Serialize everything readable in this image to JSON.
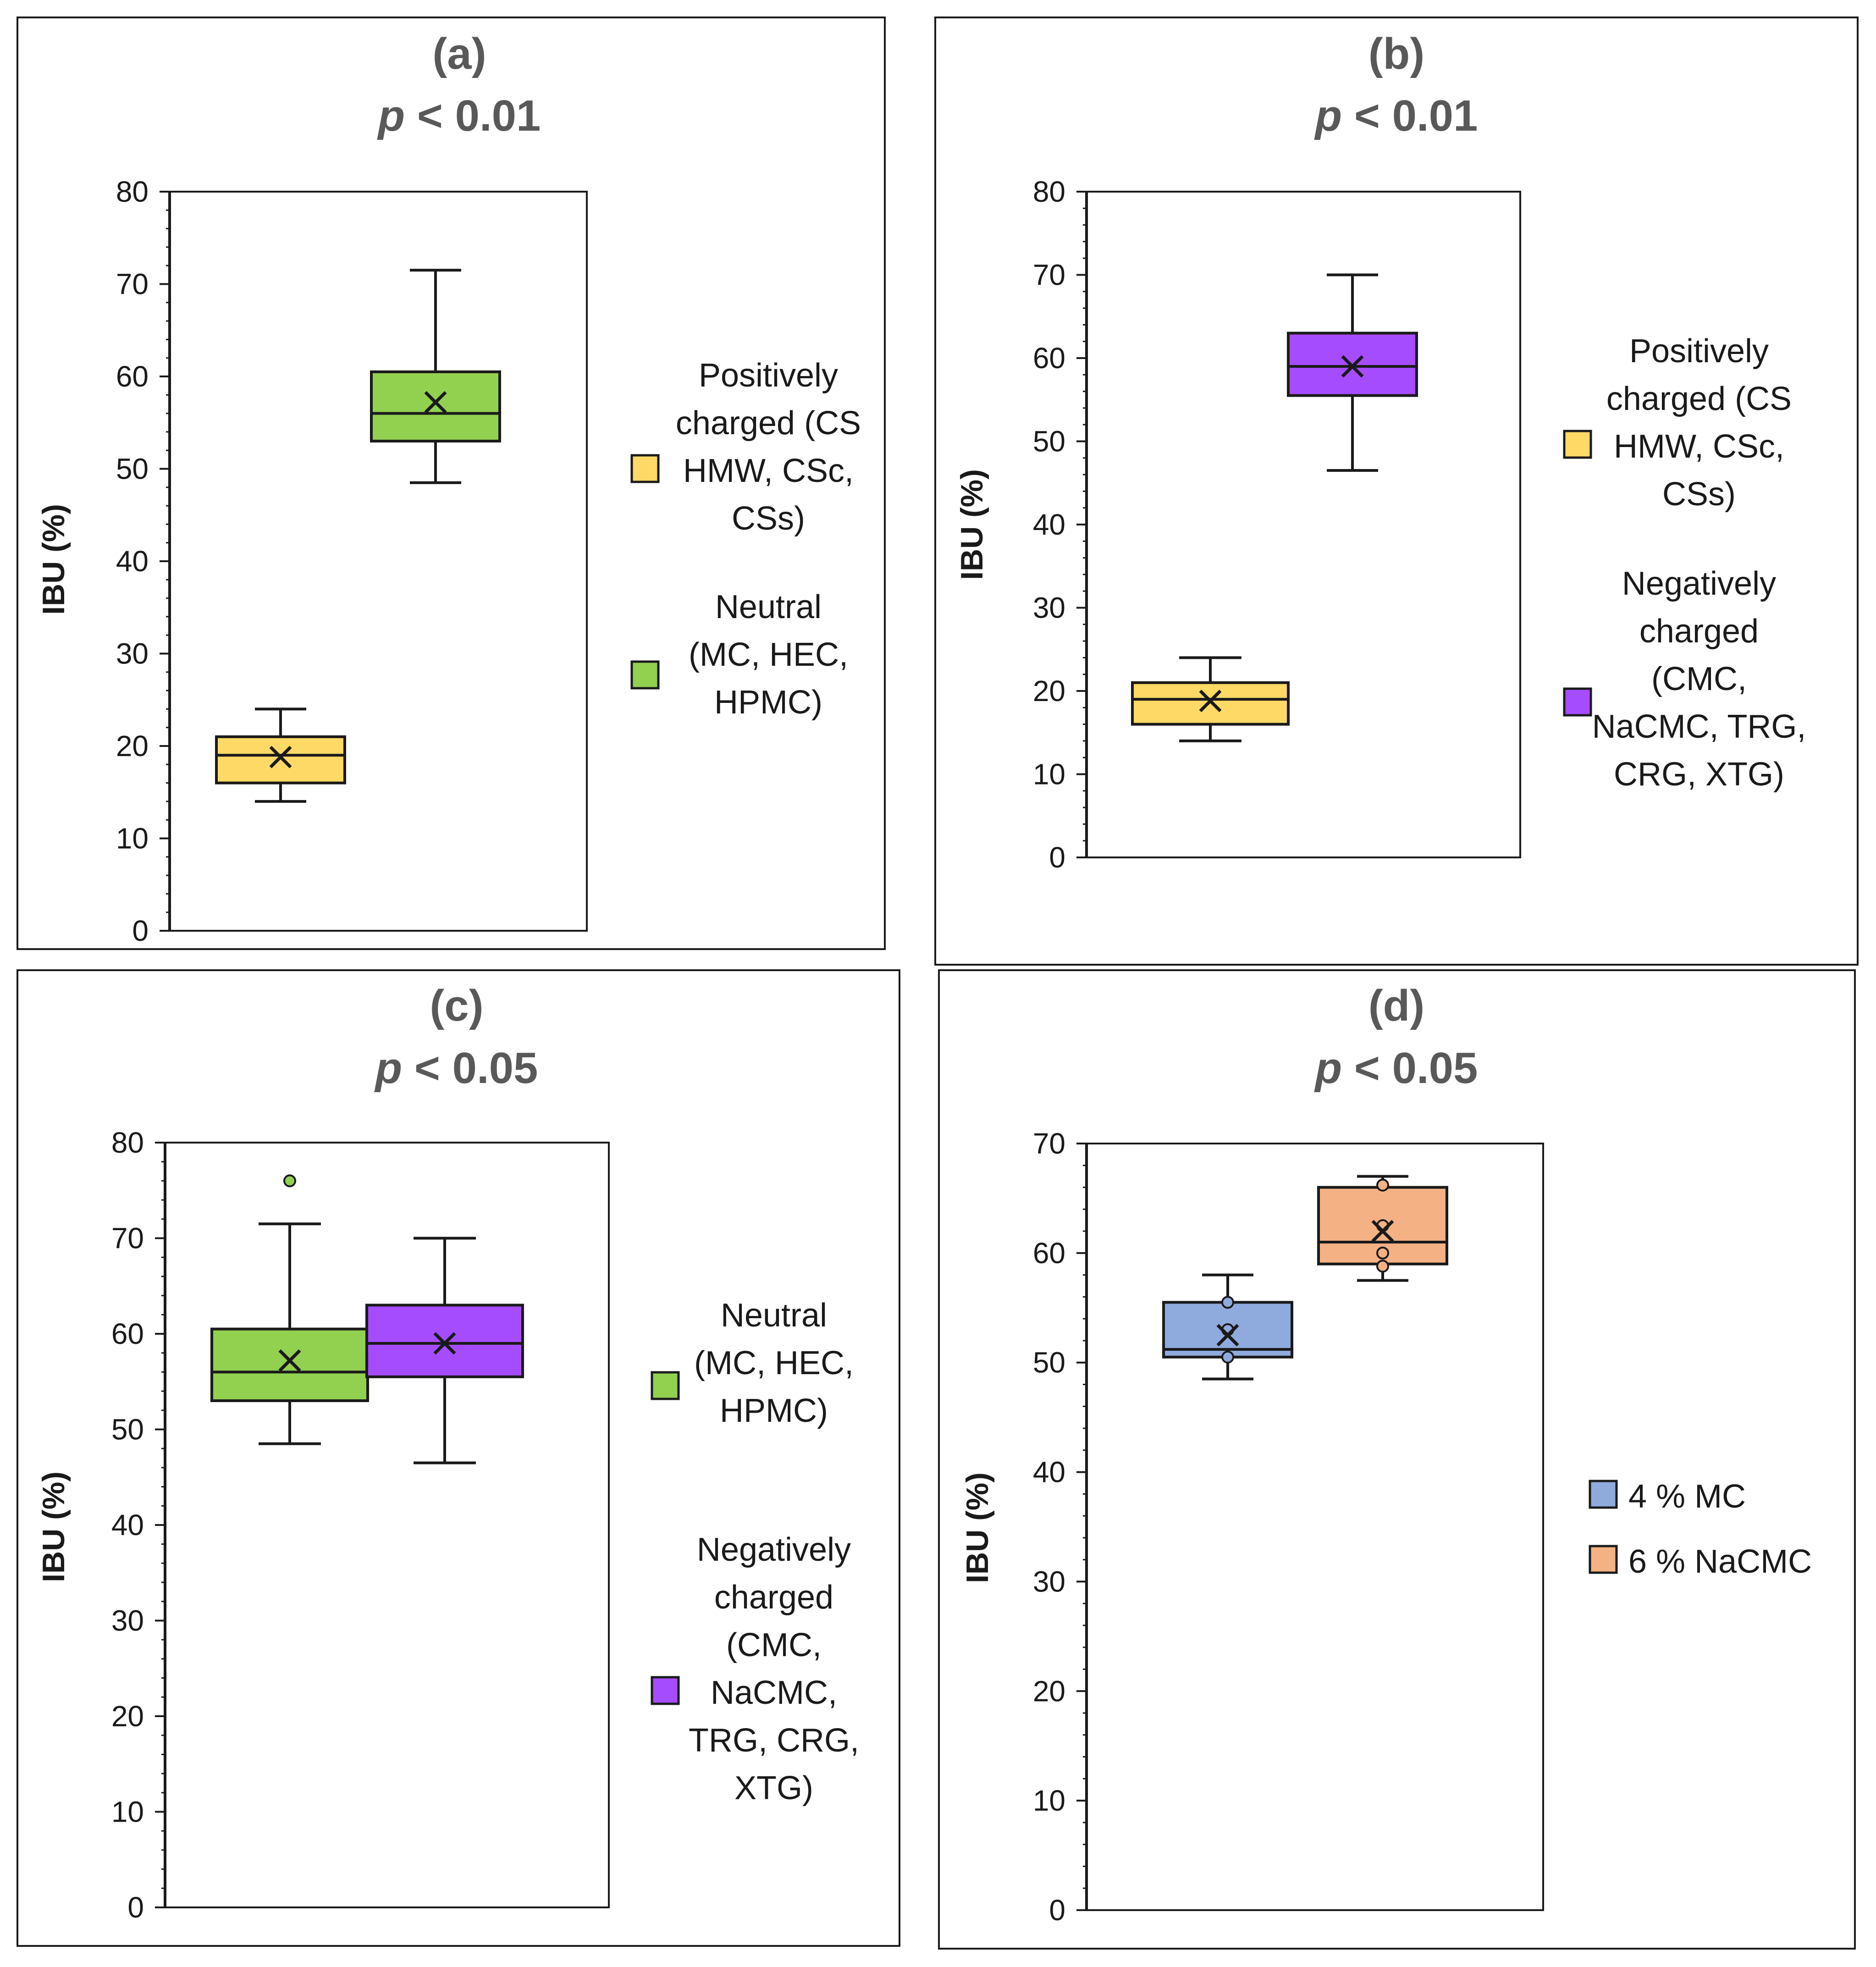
{
  "colors": {
    "positive": "#FFD966",
    "neutral": "#92D050",
    "negative": "#A64CFF",
    "mc": "#8FAADC",
    "nacmc": "#F4B183"
  },
  "chart_data": [
    {
      "type": "box",
      "panel": "(a)",
      "title_italic": "p",
      "title_rest": " < 0.01",
      "ylabel": "IBU (%)",
      "ylim": [
        0,
        80
      ],
      "yticks": [
        0,
        10,
        20,
        30,
        40,
        50,
        60,
        70,
        80
      ],
      "series": [
        {
          "name": "Positively charged (CS HMW, CSc, CSs)",
          "legend_lines": [
            "Positively",
            "charged (CS",
            "HMW, CSc,",
            "CSs)"
          ],
          "color_key": "positive",
          "min": 14,
          "q1": 16,
          "median": 19,
          "q3": 21,
          "max": 24,
          "mean": 18.8,
          "outliers": [],
          "points": []
        },
        {
          "name": "Neutral (MC, HEC, HPMC)",
          "legend_lines": [
            "Neutral",
            "(MC, HEC,",
            "HPMC)"
          ],
          "color_key": "neutral",
          "min": 48.5,
          "q1": 53,
          "median": 56,
          "q3": 60.5,
          "max": 71.5,
          "mean": 57.2,
          "outliers": [],
          "points": []
        }
      ]
    },
    {
      "type": "box",
      "panel": "(b)",
      "title_italic": "p",
      "title_rest": " < 0.01",
      "ylabel": "IBU (%)",
      "ylim": [
        0,
        80
      ],
      "yticks": [
        0,
        10,
        20,
        30,
        40,
        50,
        60,
        70,
        80
      ],
      "series": [
        {
          "name": "Positively charged (CS HMW, CSc, CSs)",
          "legend_lines": [
            "Positively",
            "charged (CS",
            "HMW, CSc,",
            "CSs)"
          ],
          "color_key": "positive",
          "min": 14,
          "q1": 16,
          "median": 19,
          "q3": 21,
          "max": 24,
          "mean": 18.8,
          "outliers": [],
          "points": []
        },
        {
          "name": "Negatively charged (CMC, NaCMC, TRG, CRG, XTG)",
          "legend_lines": [
            "Negatively",
            "charged",
            "(CMC,",
            "NaCMC, TRG,",
            "CRG, XTG)"
          ],
          "color_key": "negative",
          "min": 46.5,
          "q1": 55.5,
          "median": 59,
          "q3": 63,
          "max": 70,
          "mean": 59,
          "outliers": [],
          "points": []
        }
      ]
    },
    {
      "type": "box",
      "panel": "(c)",
      "title_italic": "p",
      "title_rest": " < 0.05",
      "ylabel": "IBU (%)",
      "ylim": [
        0,
        80
      ],
      "yticks": [
        0,
        10,
        20,
        30,
        40,
        50,
        60,
        70,
        80
      ],
      "series": [
        {
          "name": "Neutral (MC, HEC, HPMC)",
          "legend_lines": [
            "Neutral",
            "(MC, HEC,",
            "HPMC)"
          ],
          "color_key": "neutral",
          "min": 48.5,
          "q1": 53,
          "median": 56,
          "q3": 60.5,
          "max": 71.5,
          "mean": 57.2,
          "outliers": [
            76
          ],
          "points": []
        },
        {
          "name": "Negatively charged (CMC, NaCMC, TRG, CRG, XTG)",
          "legend_lines": [
            "Negatively",
            "charged",
            "(CMC,",
            "NaCMC,",
            "TRG, CRG,",
            "XTG)"
          ],
          "color_key": "negative",
          "min": 46.5,
          "q1": 55.5,
          "median": 59,
          "q3": 63,
          "max": 70,
          "mean": 59,
          "outliers": [],
          "points": []
        }
      ]
    },
    {
      "type": "box",
      "panel": "(d)",
      "title_italic": "p",
      "title_rest": " < 0.05",
      "ylabel": "IBU (%)",
      "ylim": [
        0,
        70
      ],
      "yticks": [
        0,
        10,
        20,
        30,
        40,
        50,
        60,
        70
      ],
      "series": [
        {
          "name": "4 % MC",
          "legend_lines": [
            "4 % MC"
          ],
          "color_key": "mc",
          "min": 48.5,
          "q1": 50.5,
          "median": 51.2,
          "q3": 55.5,
          "max": 58,
          "mean": 52.5,
          "outliers": [],
          "points": [
            50.5,
            53,
            55.5
          ]
        },
        {
          "name": "6 % NaCMC",
          "legend_lines": [
            "6 % NaCMC"
          ],
          "color_key": "nacmc",
          "min": 57.5,
          "q1": 59,
          "median": 61,
          "q3": 66,
          "max": 67,
          "mean": 62,
          "outliers": [],
          "points": [
            58.8,
            60,
            62.5,
            66.2
          ]
        }
      ]
    }
  ]
}
